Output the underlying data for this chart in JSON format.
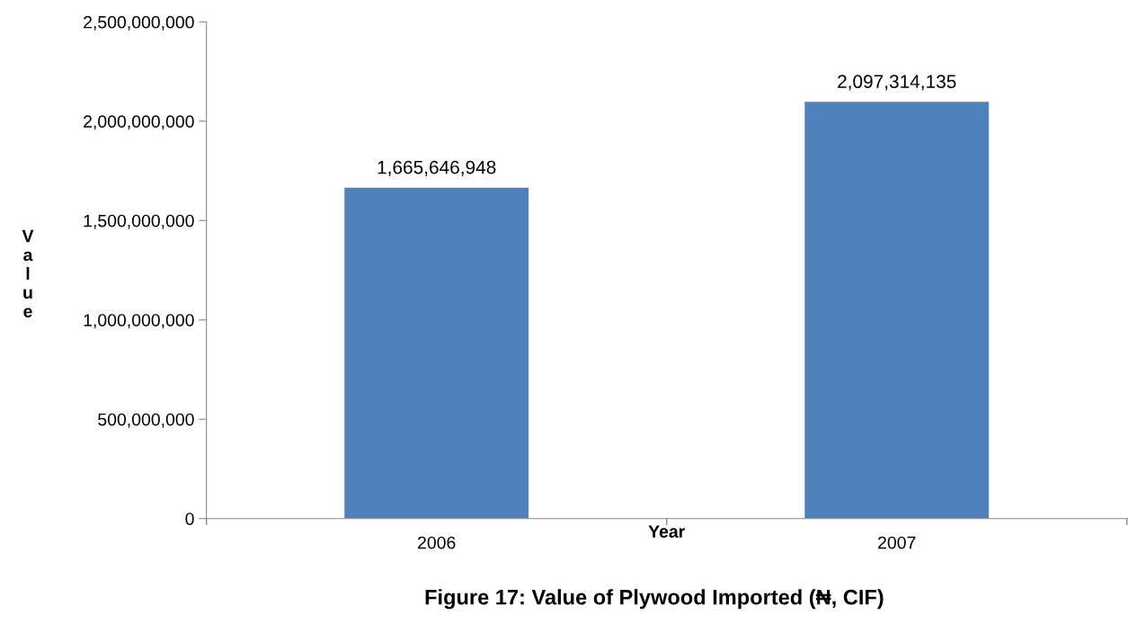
{
  "chart_data": {
    "type": "bar",
    "title": "Figure 17: Value of Plywood Imported (₦, CIF)",
    "xlabel": "Year",
    "ylabel": "Value",
    "categories": [
      "2006",
      "2007"
    ],
    "series": [
      {
        "color": "#4f81bd",
        "values": [
          1665646948,
          2097314135
        ]
      }
    ],
    "ylim": [
      0,
      2500000000
    ],
    "yticks": [
      {
        "value": 0,
        "label": "0"
      },
      {
        "value": 500000000,
        "label": "500,000,000"
      },
      {
        "value": 1000000000,
        "label": "1,000,000,000"
      },
      {
        "value": 1500000000,
        "label": "1,500,000,000"
      },
      {
        "value": 2000000000,
        "label": "2,000,000,000"
      },
      {
        "value": 2500000000,
        "label": "2,500,000,000"
      }
    ],
    "value_labels": [
      "1,665,646,948",
      "2,097,314,135"
    ],
    "grid": false,
    "legend": false
  }
}
